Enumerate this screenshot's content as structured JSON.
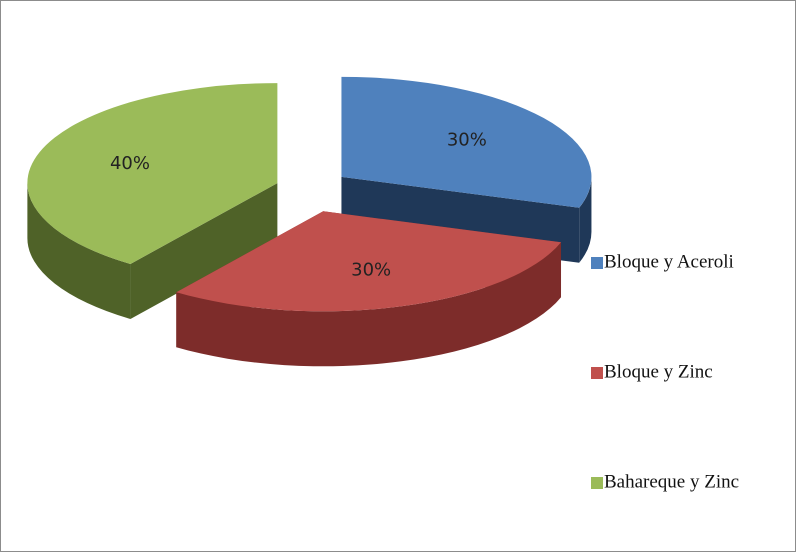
{
  "chart_data": {
    "type": "pie",
    "categories": [
      "Bloque y Aceroli",
      "Bloque y Zinc",
      "Bahareque y Zinc"
    ],
    "values": [
      30,
      30,
      40
    ],
    "value_labels": [
      "30%",
      "30%",
      "40%"
    ],
    "colors": [
      "#4f81bd",
      "#c0504d",
      "#9bbb59"
    ],
    "side_colors": [
      "#1f3858",
      "#7d2c2a",
      "#4f6228"
    ],
    "legend": "right"
  }
}
